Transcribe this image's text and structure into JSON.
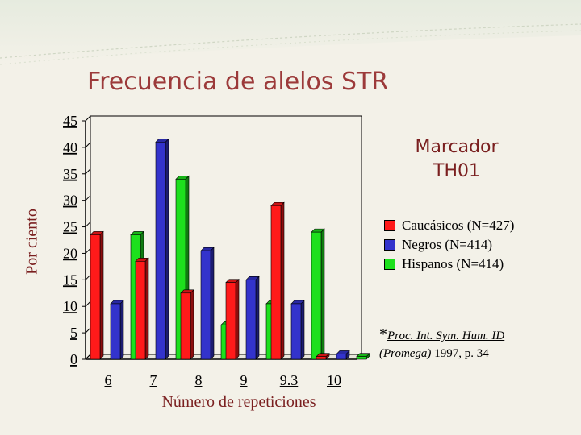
{
  "title": "Frecuencia de alelos STR",
  "marker": {
    "line1": "Marcador",
    "line2": "TH01"
  },
  "citation": {
    "star": "*",
    "line1": "Proc. Int. Sym. Hum. ID",
    "italic2": "(Promega)",
    "rest2": " 1997, p. 34"
  },
  "colors": {
    "series": [
      "#ff1a1a",
      "#3333cc",
      "#1de01d"
    ]
  },
  "chart_data": {
    "type": "bar",
    "title": "Frecuencia de alelos STR",
    "xlabel": "Número de repeticiones",
    "ylabel": "Por ciento",
    "categories": [
      "6",
      "7",
      "8",
      "9",
      "9.3",
      "10"
    ],
    "ylim": [
      0,
      45
    ],
    "yticks": [
      "0",
      "5",
      "10",
      "15",
      "20",
      "25",
      "30",
      "35",
      "40",
      "45"
    ],
    "grid": false,
    "legend_position": "right",
    "series": [
      {
        "name": "Caucásicos (N=427)",
        "values": [
          23.5,
          18.5,
          12.5,
          14.5,
          29.0,
          0.5
        ]
      },
      {
        "name": "Negros (N=414)",
        "values": [
          10.5,
          41.0,
          20.5,
          15.0,
          10.5,
          1.0
        ]
      },
      {
        "name": "Hispanos (N=414)",
        "values": [
          23.5,
          34.0,
          6.5,
          10.5,
          24.0,
          0.5
        ]
      }
    ]
  }
}
